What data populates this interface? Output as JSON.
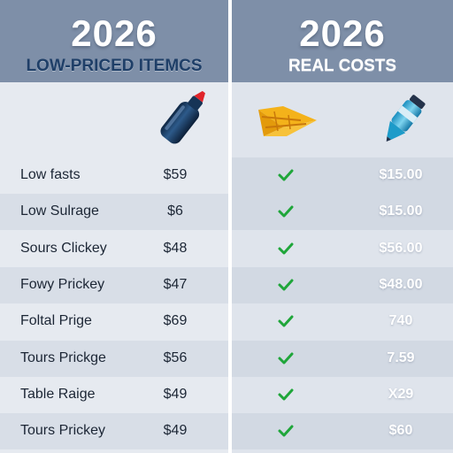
{
  "left_header": {
    "year": "2026",
    "subtitle": "LOW-PRICED ITEMCS"
  },
  "right_header": {
    "year": "2026",
    "subtitle": "REAL COSTS"
  },
  "icons": [
    "bottle-icon",
    "shoe-icon",
    "marker-icon"
  ],
  "colors": {
    "header_bg": "#7e8fa8",
    "check": "#1fa63a",
    "subtitle": "#1f3f68"
  },
  "rows": [
    {
      "name": "Low fasts",
      "price": "$59",
      "real_cost": "$15.00"
    },
    {
      "name": "Low Sulrage",
      "price": "$6",
      "real_cost": "$15.00"
    },
    {
      "name": "Sours Clickey",
      "price": "$48",
      "real_cost": "$56.00"
    },
    {
      "name": "Fowy Prickey",
      "price": "$47",
      "real_cost": "$48.00"
    },
    {
      "name": "Foltal Prige",
      "price": "$69",
      "real_cost": "740"
    },
    {
      "name": "Tours Prickge",
      "price": "$56",
      "real_cost": "7.59"
    },
    {
      "name": "Table Raige",
      "price": "$49",
      "real_cost": "X29"
    },
    {
      "name": "Tours Prickey",
      "price": "$49",
      "real_cost": "$60"
    }
  ]
}
